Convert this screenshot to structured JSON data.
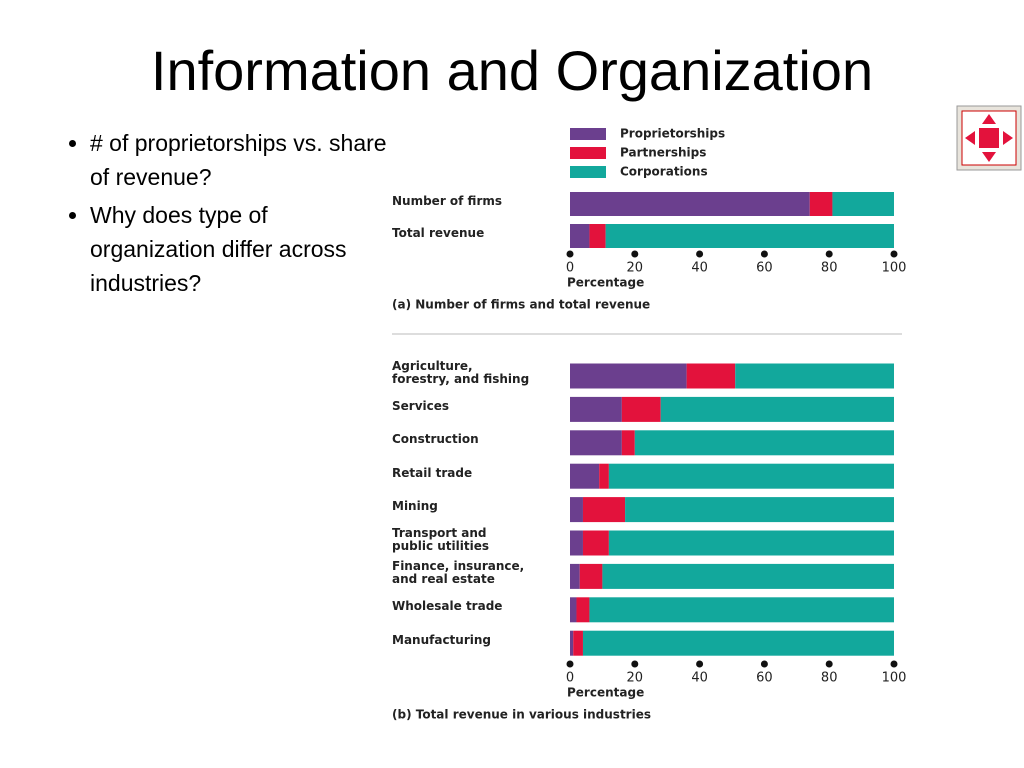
{
  "slide": {
    "title": "Information and Organization",
    "bullets": [
      "# of proprietorships vs. share of revenue?",
      "Why does type of organization differ across industries?"
    ]
  },
  "chart_data": [
    {
      "type": "stacked-bar-horizontal",
      "caption": "(a) Number of firms and total revenue",
      "xlabel": "Percentage",
      "categories": [
        "Number of firms",
        "Total revenue"
      ],
      "series": [
        {
          "name": "Proprietorships",
          "color": "#6b3f8e",
          "values": [
            74,
            6
          ]
        },
        {
          "name": "Partnerships",
          "color": "#e3123c",
          "values": [
            7,
            5
          ]
        },
        {
          "name": "Corporations",
          "color": "#12a89c",
          "values": [
            19,
            89
          ]
        }
      ],
      "xlim": [
        0,
        100
      ],
      "xticks": [
        0,
        20,
        40,
        60,
        80,
        100
      ],
      "legend": "top"
    },
    {
      "type": "stacked-bar-horizontal",
      "caption": "(b) Total revenue in various industries",
      "xlabel": "Percentage",
      "categories": [
        "Agriculture,\nforestry, and fishing",
        "Services",
        "Construction",
        "Retail trade",
        "Mining",
        "Transport and\npublic utilities",
        "Finance, insurance,\nand real estate",
        "Wholesale trade",
        "Manufacturing"
      ],
      "series": [
        {
          "name": "Proprietorships",
          "color": "#6b3f8e",
          "values": [
            36,
            16,
            16,
            9,
            4,
            4,
            3,
            2,
            1
          ]
        },
        {
          "name": "Partnerships",
          "color": "#e3123c",
          "values": [
            15,
            12,
            4,
            3,
            13,
            8,
            7,
            4,
            3
          ]
        },
        {
          "name": "Corporations",
          "color": "#12a89c",
          "values": [
            49,
            72,
            80,
            88,
            83,
            88,
            90,
            94,
            96
          ]
        }
      ],
      "xlim": [
        0,
        100
      ],
      "xticks": [
        0,
        20,
        40,
        60,
        80,
        100
      ],
      "legend": "none"
    }
  ]
}
